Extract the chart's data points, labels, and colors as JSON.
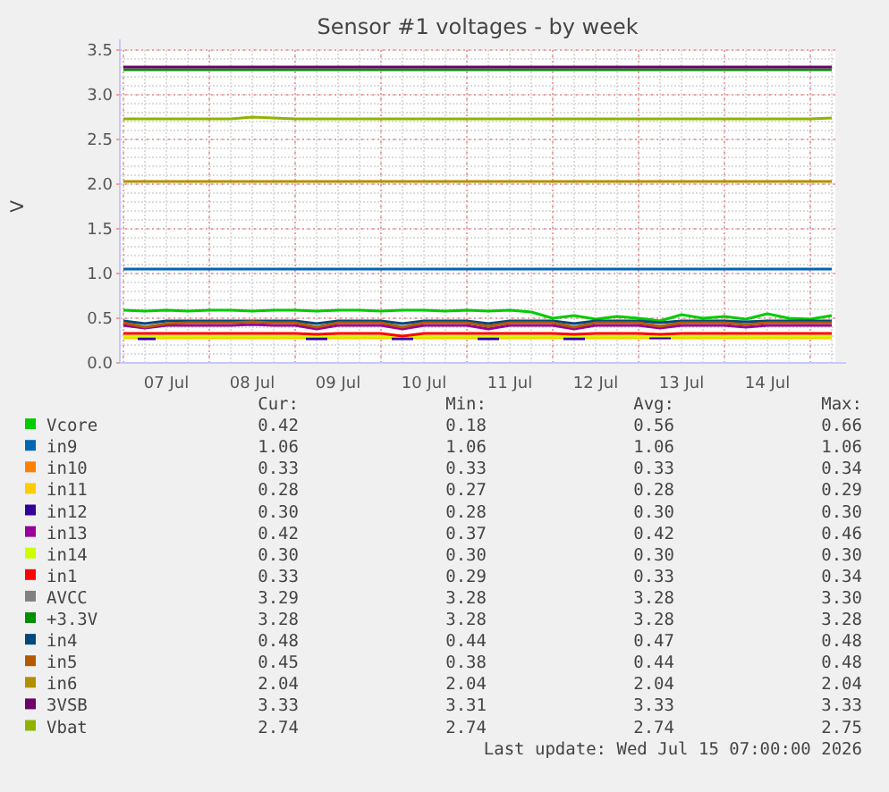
{
  "chart_data": {
    "type": "line",
    "title": "Sensor #1 voltages - by week",
    "ylabel": "V",
    "x": [
      "2026-07-07T00:00",
      "2026-07-07T06:00",
      "2026-07-07T12:00",
      "2026-07-07T18:00",
      "2026-07-08T00:00",
      "2026-07-08T06:00",
      "2026-07-08T12:00",
      "2026-07-08T18:00",
      "2026-07-09T00:00",
      "2026-07-09T06:00",
      "2026-07-09T12:00",
      "2026-07-09T18:00",
      "2026-07-10T00:00",
      "2026-07-10T06:00",
      "2026-07-10T12:00",
      "2026-07-10T18:00",
      "2026-07-11T00:00",
      "2026-07-11T06:00",
      "2026-07-11T12:00",
      "2026-07-11T18:00",
      "2026-07-12T00:00",
      "2026-07-12T06:00",
      "2026-07-12T12:00",
      "2026-07-12T18:00",
      "2026-07-13T00:00",
      "2026-07-13T06:00",
      "2026-07-13T12:00",
      "2026-07-13T18:00",
      "2026-07-14T00:00",
      "2026-07-14T06:00",
      "2026-07-14T12:00",
      "2026-07-14T18:00",
      "2026-07-15T00:00",
      "2026-07-15T06:00"
    ],
    "xlim": [
      "2026-07-06T23:00",
      "2026-07-15T07:00"
    ],
    "xticks": [
      {
        "value": "2026-07-07T00:00",
        "label": null
      },
      {
        "value": "2026-07-07T12:00",
        "label": "07 Jul"
      },
      {
        "value": "2026-07-08T00:00",
        "label": null
      },
      {
        "value": "2026-07-08T12:00",
        "label": "08 Jul"
      },
      {
        "value": "2026-07-09T00:00",
        "label": null
      },
      {
        "value": "2026-07-09T12:00",
        "label": "09 Jul"
      },
      {
        "value": "2026-07-10T00:00",
        "label": null
      },
      {
        "value": "2026-07-10T12:00",
        "label": "10 Jul"
      },
      {
        "value": "2026-07-11T00:00",
        "label": null
      },
      {
        "value": "2026-07-11T12:00",
        "label": "11 Jul"
      },
      {
        "value": "2026-07-12T00:00",
        "label": null
      },
      {
        "value": "2026-07-12T12:00",
        "label": "12 Jul"
      },
      {
        "value": "2026-07-13T00:00",
        "label": null
      },
      {
        "value": "2026-07-13T12:00",
        "label": "13 Jul"
      },
      {
        "value": "2026-07-14T00:00",
        "label": null
      },
      {
        "value": "2026-07-14T12:00",
        "label": "14 Jul"
      },
      {
        "value": "2026-07-15T00:00",
        "label": null
      }
    ],
    "ylim": [
      0,
      3.5
    ],
    "yticks": [
      {
        "value": 0,
        "label": "0.0"
      },
      {
        "value": 0.5,
        "label": "0.5"
      },
      {
        "value": 1,
        "label": "1.0"
      },
      {
        "value": 1.5,
        "label": "1.5"
      },
      {
        "value": 2,
        "label": "2.0"
      },
      {
        "value": 2.5,
        "label": "2.5"
      },
      {
        "value": 3,
        "label": "3.0"
      },
      {
        "value": 3.5,
        "label": "3.5"
      }
    ],
    "grid": true,
    "legend": "bottom",
    "line_style": "solid",
    "marker": "none",
    "series": [
      {
        "name": "Vcore",
        "color": "#00cc00",
        "values": [
          0.59,
          0.58,
          0.59,
          0.58,
          0.59,
          0.59,
          0.58,
          0.59,
          0.59,
          0.58,
          0.59,
          0.59,
          0.58,
          0.59,
          0.59,
          0.58,
          0.59,
          0.58,
          0.59,
          0.57,
          0.5,
          0.53,
          0.49,
          0.52,
          0.5,
          0.47,
          0.54,
          0.5,
          0.52,
          0.49,
          0.55,
          0.5,
          0.49,
          0.53
        ]
      },
      {
        "name": "in9",
        "color": "#0066b3",
        "values": [
          1.05,
          1.05,
          1.05,
          1.05,
          1.05,
          1.05,
          1.05,
          1.05,
          1.05,
          1.05,
          1.05,
          1.05,
          1.05,
          1.05,
          1.05,
          1.05,
          1.05,
          1.05,
          1.05,
          1.05,
          1.05,
          1.05,
          1.05,
          1.05,
          1.05,
          1.05,
          1.05,
          1.05,
          1.05,
          1.05,
          1.05,
          1.05,
          1.05,
          1.05
        ]
      },
      {
        "name": "in10",
        "color": "#ff8000",
        "values": [
          null,
          null,
          null,
          null,
          null,
          null,
          null,
          null,
          null,
          null,
          null,
          null,
          null,
          null,
          null,
          null,
          null,
          null,
          null,
          null,
          null,
          null,
          null,
          null,
          null,
          null,
          null,
          null,
          null,
          null,
          null,
          null,
          null,
          null
        ]
      },
      {
        "name": "in11",
        "color": "#ffcc00",
        "values": [
          0.28,
          0.28,
          0.28,
          0.28,
          0.28,
          0.28,
          0.28,
          0.28,
          0.28,
          0.28,
          0.28,
          0.28,
          0.28,
          0.28,
          0.28,
          0.28,
          0.28,
          0.28,
          0.28,
          0.28,
          0.28,
          0.28,
          0.28,
          0.28,
          0.28,
          0.28,
          0.28,
          0.28,
          0.28,
          0.28,
          0.28,
          0.28,
          0.28,
          0.28
        ]
      },
      {
        "name": "in12",
        "color": "#330099",
        "x": [
          "2026-07-07T04:00",
          "2026-07-07T09:00",
          "2026-07-07T10:00",
          "2026-07-09T03:00",
          "2026-07-09T09:00",
          "2026-07-09T10:00",
          "2026-07-10T03:00",
          "2026-07-10T09:00",
          "2026-07-10T10:00",
          "2026-07-11T03:00",
          "2026-07-11T09:00",
          "2026-07-11T10:00",
          "2026-07-12T03:00",
          "2026-07-12T09:00",
          "2026-07-12T10:00",
          "2026-07-13T03:00",
          "2026-07-13T09:00"
        ],
        "values": [
          0.27,
          0.27,
          null,
          0.27,
          0.27,
          null,
          0.27,
          0.27,
          null,
          0.27,
          0.27,
          null,
          0.27,
          0.27,
          null,
          0.28,
          0.28
        ]
      },
      {
        "name": "in13",
        "color": "#990099",
        "values": [
          0.42,
          0.39,
          0.42,
          0.42,
          0.42,
          0.42,
          0.43,
          0.42,
          0.42,
          0.38,
          0.42,
          0.42,
          0.42,
          0.38,
          0.42,
          0.42,
          0.42,
          0.38,
          0.42,
          0.42,
          0.42,
          0.38,
          0.42,
          0.42,
          0.42,
          0.39,
          0.42,
          0.42,
          0.42,
          0.4,
          0.42,
          0.42,
          0.42,
          0.42
        ]
      },
      {
        "name": "in14",
        "color": "#ccff00",
        "values": [
          0.3,
          0.3,
          0.3,
          0.3,
          0.3,
          0.3,
          0.3,
          0.3,
          0.3,
          0.3,
          0.3,
          0.3,
          0.3,
          0.3,
          0.3,
          0.3,
          0.3,
          0.3,
          0.3,
          0.3,
          0.3,
          0.3,
          0.3,
          0.3,
          0.3,
          0.3,
          0.3,
          0.3,
          0.3,
          0.3,
          0.3,
          0.3,
          0.3,
          0.3
        ]
      },
      {
        "name": "in1",
        "color": "#ff0000",
        "values": [
          0.33,
          0.33,
          0.33,
          0.33,
          0.33,
          0.33,
          0.33,
          0.33,
          0.33,
          0.32,
          0.33,
          0.33,
          0.33,
          0.3,
          0.33,
          0.33,
          0.33,
          0.33,
          0.33,
          0.33,
          0.33,
          0.32,
          0.33,
          0.33,
          0.33,
          0.32,
          0.33,
          0.33,
          0.33,
          0.33,
          0.33,
          0.33,
          0.33,
          0.33
        ]
      },
      {
        "name": "AVCC",
        "color": "#808080",
        "values": [
          null,
          null,
          null,
          null,
          null,
          null,
          null,
          null,
          null,
          null,
          null,
          null,
          null,
          null,
          null,
          null,
          null,
          null,
          null,
          null,
          null,
          null,
          null,
          null,
          null,
          null,
          null,
          null,
          null,
          null,
          null,
          null,
          null,
          null
        ]
      },
      {
        "name": "+3.3V",
        "color": "#008f00",
        "values": [
          3.28,
          3.28,
          3.28,
          3.28,
          3.28,
          3.28,
          3.28,
          3.28,
          3.28,
          3.28,
          3.28,
          3.28,
          3.28,
          3.28,
          3.28,
          3.28,
          3.28,
          3.28,
          3.28,
          3.28,
          3.28,
          3.28,
          3.28,
          3.28,
          3.28,
          3.28,
          3.28,
          3.28,
          3.28,
          3.28,
          3.28,
          3.28,
          3.28,
          3.28
        ]
      },
      {
        "name": "in4",
        "color": "#00487d",
        "values": [
          0.47,
          0.44,
          0.47,
          0.47,
          0.47,
          0.47,
          0.47,
          0.47,
          0.47,
          0.44,
          0.47,
          0.47,
          0.47,
          0.44,
          0.47,
          0.47,
          0.47,
          0.44,
          0.47,
          0.47,
          0.47,
          0.44,
          0.47,
          0.47,
          0.47,
          0.45,
          0.47,
          0.47,
          0.47,
          0.46,
          0.47,
          0.47,
          0.47,
          0.47
        ]
      },
      {
        "name": "in5",
        "color": "#b35a00",
        "values": [
          0.45,
          0.4,
          0.44,
          0.45,
          0.45,
          0.45,
          0.46,
          0.45,
          0.45,
          0.4,
          0.45,
          0.45,
          0.45,
          0.4,
          0.45,
          0.45,
          0.45,
          0.41,
          0.45,
          0.45,
          0.45,
          0.4,
          0.45,
          0.45,
          0.45,
          0.41,
          0.45,
          0.45,
          0.45,
          0.43,
          0.45,
          0.45,
          0.45,
          0.45
        ]
      },
      {
        "name": "in6",
        "color": "#b38f00",
        "values": [
          2.03,
          2.03,
          2.03,
          2.03,
          2.03,
          2.03,
          2.03,
          2.03,
          2.03,
          2.03,
          2.03,
          2.03,
          2.03,
          2.03,
          2.03,
          2.03,
          2.03,
          2.03,
          2.03,
          2.03,
          2.03,
          2.03,
          2.03,
          2.03,
          2.03,
          2.03,
          2.03,
          2.03,
          2.03,
          2.03,
          2.03,
          2.03,
          2.03,
          2.03
        ]
      },
      {
        "name": "3VSB",
        "color": "#6b006b",
        "values": [
          3.31,
          3.31,
          3.31,
          3.31,
          3.31,
          3.31,
          3.31,
          3.31,
          3.31,
          3.31,
          3.31,
          3.31,
          3.31,
          3.31,
          3.31,
          3.31,
          3.31,
          3.31,
          3.31,
          3.31,
          3.31,
          3.31,
          3.31,
          3.31,
          3.31,
          3.31,
          3.31,
          3.31,
          3.31,
          3.31,
          3.31,
          3.31,
          3.31,
          3.31
        ]
      },
      {
        "name": "Vbat",
        "color": "#8fb300",
        "values": [
          2.73,
          2.73,
          2.73,
          2.73,
          2.73,
          2.73,
          2.75,
          2.74,
          2.73,
          2.73,
          2.73,
          2.73,
          2.73,
          2.73,
          2.73,
          2.73,
          2.73,
          2.73,
          2.73,
          2.73,
          2.73,
          2.73,
          2.73,
          2.73,
          2.73,
          2.73,
          2.73,
          2.73,
          2.73,
          2.73,
          2.73,
          2.73,
          2.73,
          2.74
        ]
      }
    ],
    "annotations": [
      "Cur:",
      "Min:",
      "Avg:",
      "Max:",
      "0.42",
      "0.18",
      "0.56",
      "0.66",
      "1.06",
      "1.06",
      "1.06",
      "1.06",
      "0.33",
      "0.33",
      "0.33",
      "0.34",
      "0.28",
      "0.27",
      "0.28",
      "0.29",
      "0.30",
      "0.28",
      "0.30",
      "0.30",
      "0.42",
      "0.37",
      "0.42",
      "0.46",
      "0.30",
      "0.30",
      "0.30",
      "0.30",
      "0.33",
      "0.29",
      "0.33",
      "0.34",
      "3.29",
      "3.28",
      "3.28",
      "3.30",
      "3.28",
      "3.28",
      "3.28",
      "3.28",
      "0.48",
      "0.44",
      "0.47",
      "0.48",
      "0.45",
      "0.38",
      "0.44",
      "0.48",
      "2.04",
      "2.04",
      "2.04",
      "2.04",
      "3.33",
      "3.31",
      "3.33",
      "3.33",
      "2.74",
      "2.74",
      "2.74",
      "2.75",
      "Last update: Wed Jul 15 07:00:00 2026"
    ]
  }
}
